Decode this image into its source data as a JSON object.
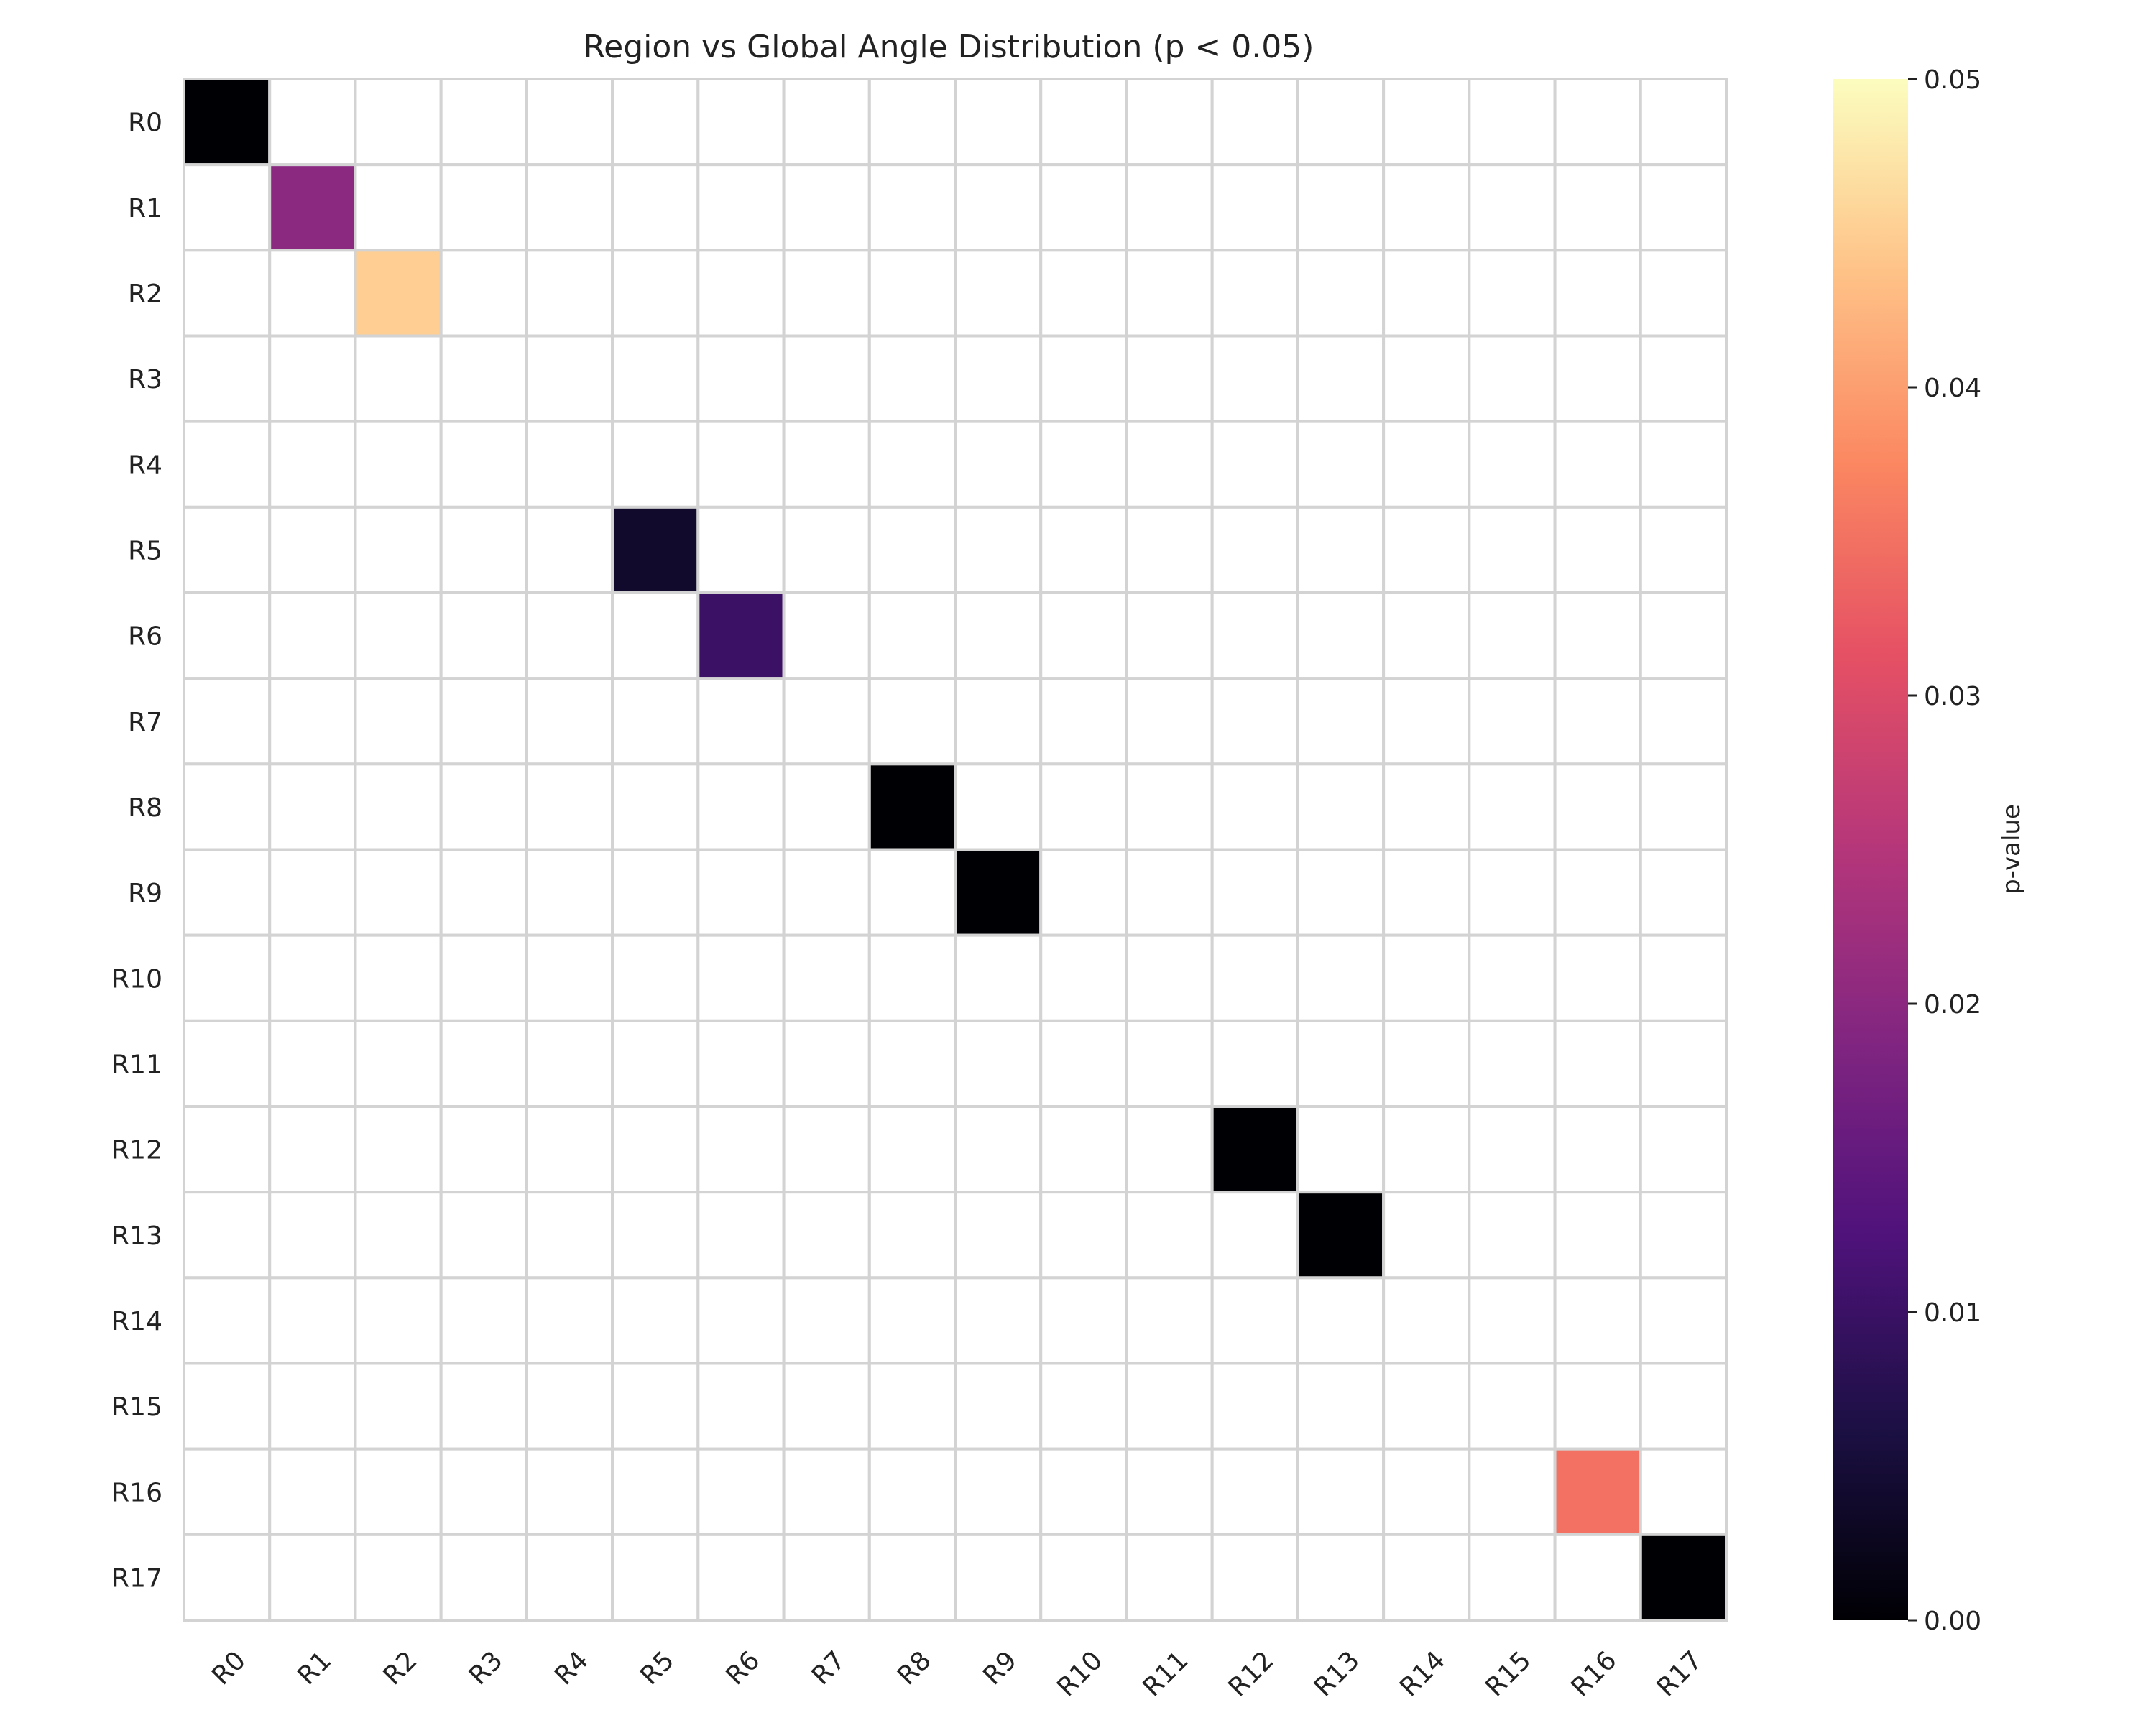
{
  "chart_data": {
    "type": "heatmap",
    "title": "Region vs Global Angle Distribution (p < 0.05)",
    "xlabel": "",
    "ylabel": "",
    "x_categories": [
      "R0",
      "R1",
      "R2",
      "R3",
      "R4",
      "R5",
      "R6",
      "R7",
      "R8",
      "R9",
      "R10",
      "R11",
      "R12",
      "R13",
      "R14",
      "R15",
      "R16",
      "R17"
    ],
    "y_categories": [
      "R0",
      "R1",
      "R2",
      "R3",
      "R4",
      "R5",
      "R6",
      "R7",
      "R8",
      "R9",
      "R10",
      "R11",
      "R12",
      "R13",
      "R14",
      "R15",
      "R16",
      "R17"
    ],
    "cells": [
      {
        "x": "R0",
        "y": "R0",
        "value": 0.0
      },
      {
        "x": "R1",
        "y": "R1",
        "value": 0.02
      },
      {
        "x": "R2",
        "y": "R2",
        "value": 0.045
      },
      {
        "x": "R5",
        "y": "R5",
        "value": 0.004
      },
      {
        "x": "R6",
        "y": "R6",
        "value": 0.01
      },
      {
        "x": "R8",
        "y": "R8",
        "value": 0.0
      },
      {
        "x": "R9",
        "y": "R9",
        "value": 0.0
      },
      {
        "x": "R12",
        "y": "R12",
        "value": 0.0
      },
      {
        "x": "R13",
        "y": "R13",
        "value": 0.0
      },
      {
        "x": "R16",
        "y": "R16",
        "value": 0.035
      },
      {
        "x": "R17",
        "y": "R17",
        "value": 0.0
      }
    ],
    "masked_color": "#ffffff",
    "grid_color": "#d3d3d3",
    "colormap": "magma",
    "colorbar": {
      "label": "p-value",
      "range": [
        0.0,
        0.05
      ],
      "ticks": [
        0.0,
        0.01,
        0.02,
        0.03,
        0.04,
        0.05
      ],
      "tick_labels": [
        "0.00",
        "0.01",
        "0.02",
        "0.03",
        "0.04",
        "0.05"
      ]
    }
  }
}
